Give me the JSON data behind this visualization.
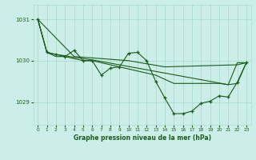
{
  "title": "Graphe pression niveau de la mer (hPa)",
  "bg_color": "#cceee8",
  "grid_color": "#aaddcc",
  "line_color": "#1a5c1a",
  "xlim": [
    -0.5,
    23.5
  ],
  "ylim": [
    1028.45,
    1031.35
  ],
  "yticks": [
    1029,
    1030,
    1031
  ],
  "xticks": [
    0,
    1,
    2,
    3,
    4,
    5,
    6,
    7,
    8,
    9,
    10,
    11,
    12,
    13,
    14,
    15,
    16,
    17,
    18,
    19,
    20,
    21,
    22,
    23
  ],
  "series1": [
    [
      0,
      1031.0
    ],
    [
      1,
      1030.2
    ],
    [
      2,
      1030.15
    ],
    [
      3,
      1030.1
    ],
    [
      4,
      1030.25
    ],
    [
      5,
      1030.0
    ],
    [
      6,
      1030.0
    ],
    [
      7,
      1029.65
    ],
    [
      8,
      1029.82
    ],
    [
      9,
      1029.85
    ],
    [
      10,
      1030.18
    ],
    [
      11,
      1030.2
    ],
    [
      12,
      1030.0
    ],
    [
      13,
      1029.5
    ],
    [
      14,
      1029.1
    ],
    [
      15,
      1028.72
    ],
    [
      16,
      1028.72
    ],
    [
      17,
      1028.78
    ],
    [
      18,
      1028.97
    ],
    [
      19,
      1029.02
    ],
    [
      20,
      1029.15
    ],
    [
      21,
      1029.12
    ],
    [
      22,
      1029.48
    ],
    [
      23,
      1029.95
    ]
  ],
  "series2": [
    [
      0,
      1031.0
    ],
    [
      4,
      1030.1
    ],
    [
      10,
      1030.0
    ],
    [
      14,
      1029.85
    ],
    [
      22,
      1029.9
    ],
    [
      23,
      1029.95
    ]
  ],
  "series3": [
    [
      0,
      1031.0
    ],
    [
      1,
      1030.2
    ],
    [
      2,
      1030.15
    ],
    [
      3,
      1030.12
    ],
    [
      4,
      1030.08
    ],
    [
      5,
      1030.05
    ],
    [
      6,
      1030.02
    ],
    [
      7,
      1029.98
    ],
    [
      8,
      1029.94
    ],
    [
      9,
      1029.9
    ],
    [
      10,
      1029.86
    ],
    [
      11,
      1029.82
    ],
    [
      12,
      1029.78
    ],
    [
      13,
      1029.74
    ],
    [
      14,
      1029.7
    ],
    [
      15,
      1029.66
    ],
    [
      16,
      1029.62
    ],
    [
      17,
      1029.58
    ],
    [
      18,
      1029.54
    ],
    [
      19,
      1029.5
    ],
    [
      20,
      1029.46
    ],
    [
      21,
      1029.42
    ],
    [
      22,
      1029.95
    ],
    [
      23,
      1029.95
    ]
  ],
  "series4": [
    [
      0,
      1031.0
    ],
    [
      1,
      1030.2
    ],
    [
      2,
      1030.1
    ],
    [
      3,
      1030.1
    ],
    [
      4,
      1030.05
    ],
    [
      5,
      1030.0
    ],
    [
      6,
      1030.0
    ],
    [
      7,
      1029.95
    ],
    [
      8,
      1029.9
    ],
    [
      9,
      1029.85
    ],
    [
      10,
      1029.8
    ],
    [
      11,
      1029.75
    ],
    [
      12,
      1029.7
    ],
    [
      13,
      1029.65
    ],
    [
      14,
      1029.55
    ],
    [
      15,
      1029.45
    ],
    [
      16,
      1029.45
    ],
    [
      17,
      1029.45
    ],
    [
      18,
      1029.45
    ],
    [
      19,
      1029.45
    ],
    [
      20,
      1029.45
    ],
    [
      21,
      1029.42
    ],
    [
      22,
      1029.45
    ],
    [
      23,
      1029.95
    ]
  ]
}
